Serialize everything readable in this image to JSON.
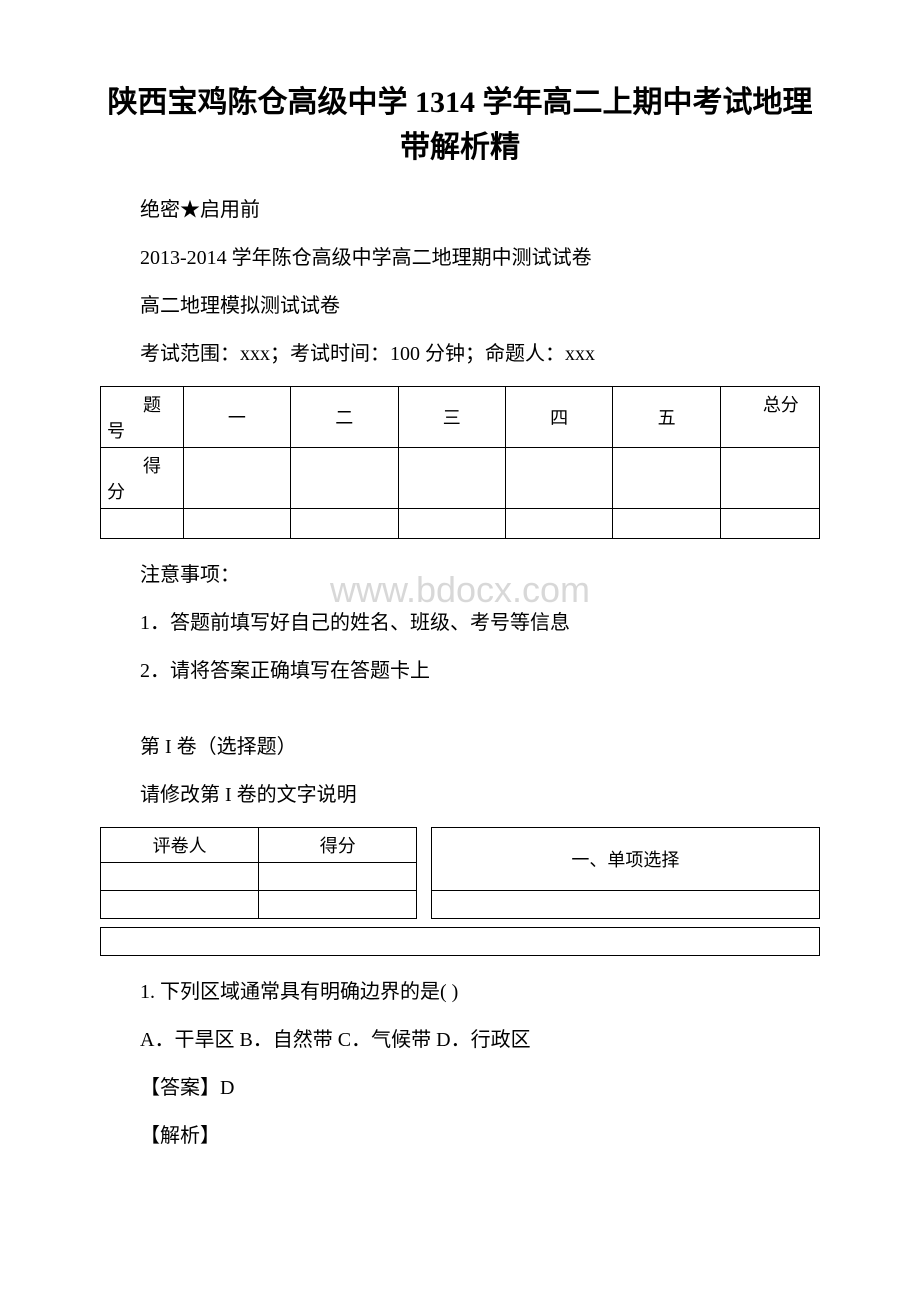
{
  "title": "陕西宝鸡陈仓高级中学 1314 学年高二上期中考试地理带解析精",
  "confidential": "绝密★启用前",
  "subtitle1": "2013-2014 学年陈仓高级中学高二地理期中测试试卷",
  "subtitle2": "高二地理模拟测试试卷",
  "exam_info": "考试范围：xxx；考试时间：100 分钟；命题人：xxx",
  "score_table": {
    "row1_label": "题号",
    "cols": [
      "一",
      "二",
      "三",
      "四",
      "五"
    ],
    "total_label": "总分",
    "row2_label": "得分"
  },
  "notice_header": "注意事项：",
  "watermark": "www.bdocx.com",
  "notice1": "1．答题前填写好自己的姓名、班级、考号等信息",
  "notice2": "2．请将答案正确填写在答题卡上",
  "section1_title": "第 I 卷（选择题）",
  "section1_sub": "请修改第 I 卷的文字说明",
  "grader_table": {
    "col1": "评卷人",
    "col2": "得分",
    "col3": "一、单项选择"
  },
  "q1": {
    "text": "1. 下列区域通常具有明确边界的是( )",
    "options": "A．干旱区 B．自然带 C．气候带 D．行政区",
    "answer": "【答案】D",
    "analysis": "【解析】"
  },
  "colors": {
    "text": "#000000",
    "background": "#ffffff",
    "border": "#000000",
    "watermark": "#d8d8d8"
  }
}
